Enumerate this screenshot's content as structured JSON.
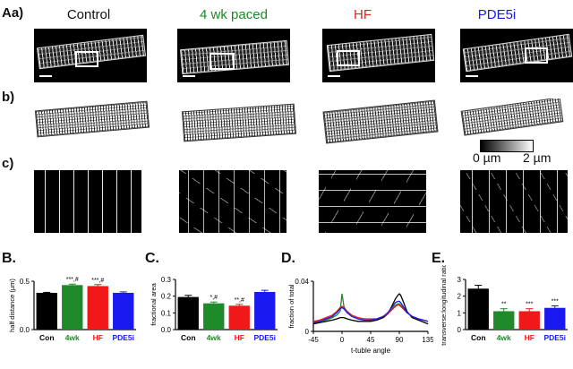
{
  "panel_labels": {
    "a": "Aa)",
    "b": "b)",
    "c": "c)",
    "B": "B.",
    "C": "C.",
    "D": "D.",
    "E": "E."
  },
  "columns": [
    {
      "label": "Control",
      "color": "#000000"
    },
    {
      "label": "4 wk paced",
      "color": "#1a8a2a"
    },
    {
      "label": "HF",
      "color": "#e8211b"
    },
    {
      "label": "PDE5i",
      "color": "#1a1ae6"
    }
  ],
  "colorbar": {
    "min_label": "0 µm",
    "max_label": "2 µm"
  },
  "group_colors": {
    "Con": "#000000",
    "4wk": "#1f8a2a",
    "HF": "#f01818",
    "PDE5i": "#1a1af0"
  },
  "chart_data": [
    {
      "id": "B",
      "type": "bar",
      "ylabel": "half distance (µm)",
      "ylim": [
        0,
        0.5
      ],
      "yticks": [
        0.0,
        0.5
      ],
      "ytick_labels": [
        "0.0",
        "0.5"
      ],
      "categories": [
        "Con",
        "4wk",
        "HF",
        "PDE5i"
      ],
      "values": [
        0.38,
        0.46,
        0.45,
        0.38
      ],
      "errors": [
        0.005,
        0.01,
        0.015,
        0.01
      ],
      "annotations": [
        "",
        "***,#",
        "***,#",
        ""
      ]
    },
    {
      "id": "C",
      "type": "bar",
      "ylabel": "fractional area",
      "ylim": [
        0,
        0.3
      ],
      "yticks": [
        0.0,
        0.1,
        0.2,
        0.3
      ],
      "ytick_labels": [
        "0.0",
        "0.1",
        "0.2",
        "0.3"
      ],
      "categories": [
        "Con",
        "4wk",
        "HF",
        "PDE5i"
      ],
      "values": [
        0.195,
        0.157,
        0.143,
        0.225
      ],
      "errors": [
        0.01,
        0.008,
        0.008,
        0.01
      ],
      "annotations": [
        "",
        "*,#",
        "**,#",
        ""
      ]
    },
    {
      "id": "D",
      "type": "line",
      "xlabel": "t-tuble angle",
      "ylabel": "fraction of total",
      "xlim": [
        -45,
        135
      ],
      "ylim": [
        0,
        0.04
      ],
      "xticks": [
        -45,
        0,
        45,
        90,
        135
      ],
      "xtick_labels": [
        "-45",
        "0",
        "45",
        "90",
        "135"
      ],
      "yticks": [
        0,
        0.04
      ],
      "ytick_labels": [
        "0",
        "0.04"
      ],
      "x": [
        -45,
        -35,
        -25,
        -15,
        -8,
        -3,
        0,
        3,
        8,
        15,
        25,
        35,
        45,
        55,
        65,
        72,
        78,
        84,
        88,
        90,
        92,
        96,
        102,
        110,
        120,
        135
      ],
      "series": [
        {
          "color": "#000000",
          "values": [
            0.006,
            0.007,
            0.008,
            0.009,
            0.01,
            0.011,
            0.011,
            0.011,
            0.01,
            0.009,
            0.008,
            0.008,
            0.008,
            0.009,
            0.011,
            0.014,
            0.02,
            0.026,
            0.029,
            0.03,
            0.029,
            0.024,
            0.016,
            0.011,
            0.009,
            0.006
          ]
        },
        {
          "color": "#1f8a2a",
          "values": [
            0.007,
            0.008,
            0.009,
            0.011,
            0.013,
            0.016,
            0.03,
            0.02,
            0.015,
            0.012,
            0.01,
            0.009,
            0.009,
            0.01,
            0.012,
            0.014,
            0.018,
            0.021,
            0.022,
            0.022,
            0.021,
            0.019,
            0.015,
            0.012,
            0.01,
            0.008
          ]
        },
        {
          "color": "#f01818",
          "values": [
            0.008,
            0.009,
            0.011,
            0.013,
            0.016,
            0.019,
            0.02,
            0.019,
            0.016,
            0.013,
            0.011,
            0.01,
            0.01,
            0.01,
            0.012,
            0.014,
            0.017,
            0.02,
            0.021,
            0.021,
            0.02,
            0.018,
            0.015,
            0.012,
            0.01,
            0.008
          ]
        },
        {
          "color": "#1a1af0",
          "values": [
            0.007,
            0.008,
            0.01,
            0.012,
            0.015,
            0.018,
            0.019,
            0.018,
            0.015,
            0.012,
            0.01,
            0.009,
            0.009,
            0.01,
            0.012,
            0.015,
            0.019,
            0.023,
            0.024,
            0.024,
            0.023,
            0.02,
            0.015,
            0.012,
            0.01,
            0.008
          ]
        }
      ]
    },
    {
      "id": "E",
      "type": "bar",
      "ylabel": "transverse:longitudinal ratio",
      "ylim": [
        0,
        3
      ],
      "yticks": [
        0,
        1,
        2,
        3
      ],
      "ytick_labels": [
        "0",
        "1",
        "2",
        "3"
      ],
      "categories": [
        "Con",
        "4wk",
        "HF",
        "PDE5i"
      ],
      "values": [
        2.45,
        1.1,
        1.1,
        1.3
      ],
      "errors": [
        0.2,
        0.15,
        0.15,
        0.12
      ],
      "annotations": [
        "",
        "**",
        "***",
        "***"
      ]
    }
  ]
}
